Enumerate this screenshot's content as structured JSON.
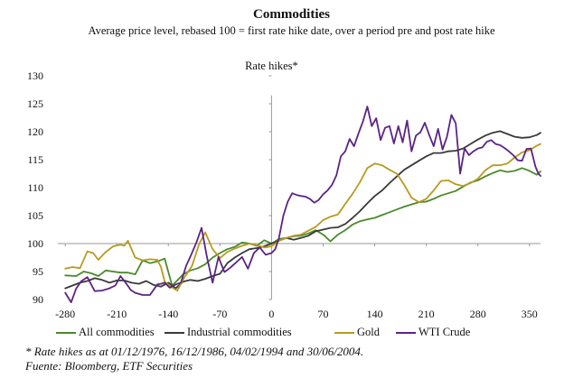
{
  "chart_data": {
    "type": "line",
    "title": "Commodities",
    "subtitle": "Average  price level, rebased 100 = first rate hike date, over a period pre and post rate hike",
    "annotation": "Rate hikes*",
    "xlabel": "",
    "ylabel": "",
    "xlim": [
      -290,
      365
    ],
    "ylim": [
      90,
      130
    ],
    "xticks": [
      -280,
      -210,
      -140,
      -70,
      0,
      70,
      140,
      210,
      280,
      350
    ],
    "yticks": [
      90,
      95,
      100,
      105,
      110,
      115,
      120,
      125,
      130
    ],
    "grid": false,
    "legend_position": "bottom",
    "series": [
      {
        "name": "All commodities",
        "color": "#4a8a2a",
        "x": [
          -280,
          -265,
          -255,
          -245,
          -235,
          -225,
          -215,
          -205,
          -195,
          -185,
          -175,
          -165,
          -155,
          -145,
          -135,
          -128,
          -120,
          -110,
          -100,
          -90,
          -80,
          -70,
          -60,
          -50,
          -40,
          -30,
          -20,
          -10,
          0,
          10,
          20,
          30,
          40,
          50,
          60,
          70,
          80,
          90,
          100,
          110,
          120,
          130,
          140,
          150,
          160,
          170,
          180,
          190,
          200,
          210,
          220,
          230,
          240,
          250,
          260,
          270,
          280,
          290,
          300,
          310,
          320,
          330,
          340,
          350,
          360,
          365
        ],
        "y": [
          94.3,
          94.2,
          95.0,
          94.7,
          94.2,
          95.2,
          95.0,
          94.8,
          94.8,
          94.5,
          97.0,
          96.5,
          96.8,
          97.3,
          92.5,
          93.4,
          94.5,
          95.2,
          95.6,
          96.3,
          97.5,
          98.3,
          99.0,
          99.4,
          100.2,
          100.0,
          99.6,
          100.6,
          100.0,
          100.8,
          101.0,
          101.3,
          101.4,
          101.8,
          102.4,
          101.6,
          100.4,
          101.6,
          102.4,
          103.4,
          104.0,
          104.3,
          104.6,
          105.1,
          105.6,
          106.1,
          106.6,
          107.0,
          107.4,
          107.5,
          108.0,
          108.6,
          109.0,
          109.4,
          110.2,
          110.9,
          111.3,
          112.0,
          112.6,
          113.1,
          112.8,
          113.0,
          113.5,
          113.0,
          112.3,
          112.9
        ]
      },
      {
        "name": "Industrial commodities",
        "color": "#3a3a3a",
        "x": [
          -280,
          -270,
          -260,
          -250,
          -240,
          -230,
          -220,
          -210,
          -200,
          -190,
          -180,
          -170,
          -160,
          -150,
          -140,
          -130,
          -120,
          -110,
          -100,
          -90,
          -80,
          -70,
          -60,
          -50,
          -40,
          -30,
          -20,
          -10,
          0,
          10,
          20,
          30,
          40,
          50,
          60,
          70,
          80,
          90,
          100,
          110,
          120,
          130,
          140,
          150,
          160,
          170,
          180,
          190,
          200,
          210,
          220,
          230,
          240,
          250,
          260,
          270,
          280,
          290,
          300,
          310,
          320,
          330,
          340,
          350,
          360,
          365
        ],
        "y": [
          92.0,
          92.5,
          93.0,
          93.3,
          93.8,
          93.5,
          93.0,
          93.4,
          93.4,
          93.0,
          92.8,
          93.3,
          92.6,
          92.3,
          93.0,
          92.0,
          93.2,
          93.5,
          93.3,
          93.7,
          94.2,
          94.6,
          96.5,
          97.5,
          98.3,
          99.0,
          99.2,
          99.5,
          100.0,
          100.5,
          101.0,
          100.7,
          101.0,
          101.4,
          102.2,
          102.5,
          102.8,
          102.9,
          103.5,
          104.6,
          105.8,
          107.2,
          108.5,
          109.5,
          110.8,
          112.0,
          113.2,
          114.0,
          114.8,
          115.6,
          116.2,
          116.2,
          116.5,
          116.6,
          117.0,
          117.8,
          118.6,
          119.3,
          119.8,
          120.1,
          119.6,
          119.1,
          118.9,
          119.0,
          119.4,
          119.8
        ]
      },
      {
        "name": "Gold",
        "color": "#b89a20",
        "x": [
          -280,
          -270,
          -260,
          -250,
          -242,
          -235,
          -225,
          -215,
          -205,
          -200,
          -195,
          -185,
          -175,
          -165,
          -155,
          -150,
          -145,
          -138,
          -128,
          -118,
          -108,
          -98,
          -90,
          -80,
          -70,
          -60,
          -50,
          -40,
          -30,
          -20,
          -10,
          0,
          10,
          20,
          30,
          40,
          50,
          60,
          70,
          80,
          90,
          100,
          110,
          120,
          130,
          140,
          150,
          160,
          170,
          180,
          190,
          200,
          210,
          220,
          230,
          240,
          250,
          260,
          270,
          280,
          290,
          300,
          310,
          320,
          330,
          340,
          350,
          360,
          365
        ],
        "y": [
          95.5,
          95.8,
          95.6,
          98.6,
          98.3,
          97.1,
          98.5,
          99.5,
          99.8,
          99.6,
          100.5,
          97.5,
          97.0,
          97.2,
          97.1,
          95.8,
          93.2,
          92.4,
          91.6,
          94.0,
          96.0,
          100.0,
          102.0,
          99.0,
          97.4,
          98.5,
          99.1,
          99.6,
          100.0,
          99.7,
          99.3,
          99.5,
          100.5,
          101.0,
          101.4,
          101.6,
          102.3,
          103.0,
          104.2,
          104.8,
          105.2,
          107.1,
          108.9,
          111.0,
          113.5,
          114.3,
          114.0,
          113.2,
          112.5,
          110.5,
          108.2,
          107.4,
          108.0,
          109.5,
          111.2,
          111.3,
          110.6,
          110.3,
          110.8,
          111.6,
          113.1,
          114.0,
          114.0,
          114.3,
          115.4,
          116.3,
          116.7,
          117.5,
          117.8
        ]
      },
      {
        "name": "WTI Crude",
        "color": "#5b2483",
        "x": [
          -280,
          -272,
          -265,
          -258,
          -250,
          -240,
          -230,
          -220,
          -212,
          -205,
          -198,
          -191,
          -185,
          -175,
          -165,
          -155,
          -150,
          -145,
          -138,
          -130,
          -123,
          -116,
          -110,
          -102,
          -95,
          -88,
          -80,
          -72,
          -64,
          -56,
          -50,
          -45,
          -40,
          -32,
          -24,
          -16,
          -8,
          0,
          5,
          10,
          16,
          22,
          28,
          34,
          40,
          46,
          52,
          58,
          64,
          70,
          76,
          82,
          88,
          94,
          100,
          106,
          112,
          118,
          124,
          130,
          136,
          142,
          148,
          154,
          160,
          166,
          172,
          178,
          184,
          190,
          196,
          202,
          208,
          214,
          220,
          226,
          232,
          238,
          244,
          250,
          256,
          262,
          268,
          274,
          280,
          286,
          292,
          298,
          304,
          310,
          316,
          322,
          328,
          334,
          340,
          346,
          352,
          358,
          362,
          365
        ],
        "y": [
          91.2,
          89.5,
          92.0,
          93.3,
          94.0,
          91.5,
          91.6,
          92.0,
          92.5,
          94.2,
          93.0,
          91.7,
          91.2,
          90.8,
          90.8,
          92.7,
          92.8,
          93.0,
          92.1,
          92.7,
          93.0,
          96.0,
          97.7,
          100.2,
          102.8,
          97.8,
          93.0,
          97.6,
          94.9,
          95.7,
          96.4,
          97.0,
          97.6,
          95.5,
          98.3,
          99.3,
          98.0,
          98.3,
          99.0,
          101.0,
          105.0,
          107.5,
          109.0,
          108.7,
          108.5,
          108.4,
          108.0,
          107.3,
          107.8,
          108.8,
          109.5,
          110.5,
          112.2,
          115.6,
          116.5,
          118.7,
          117.4,
          119.7,
          121.8,
          124.5,
          121.0,
          122.4,
          118.5,
          120.7,
          121.0,
          117.9,
          121.0,
          118.1,
          122.0,
          116.5,
          119.3,
          119.9,
          121.6,
          119.4,
          117.4,
          120.5,
          116.8,
          119.1,
          123.0,
          121.5,
          112.5,
          117.0,
          115.8,
          116.5,
          117.0,
          117.2,
          118.2,
          118.5,
          117.8,
          117.6,
          117.1,
          116.5,
          115.8,
          114.9,
          114.8,
          116.9,
          117.0,
          113.8,
          112.5,
          112.1
        ]
      }
    ]
  },
  "footnote": {
    "line1": "* Rate hikes as at 01/12/1976, 16/12/1986, 04/02/1994 and 30/06/2004.",
    "line2": "Fuente: Bloomberg, ETF Securities"
  }
}
